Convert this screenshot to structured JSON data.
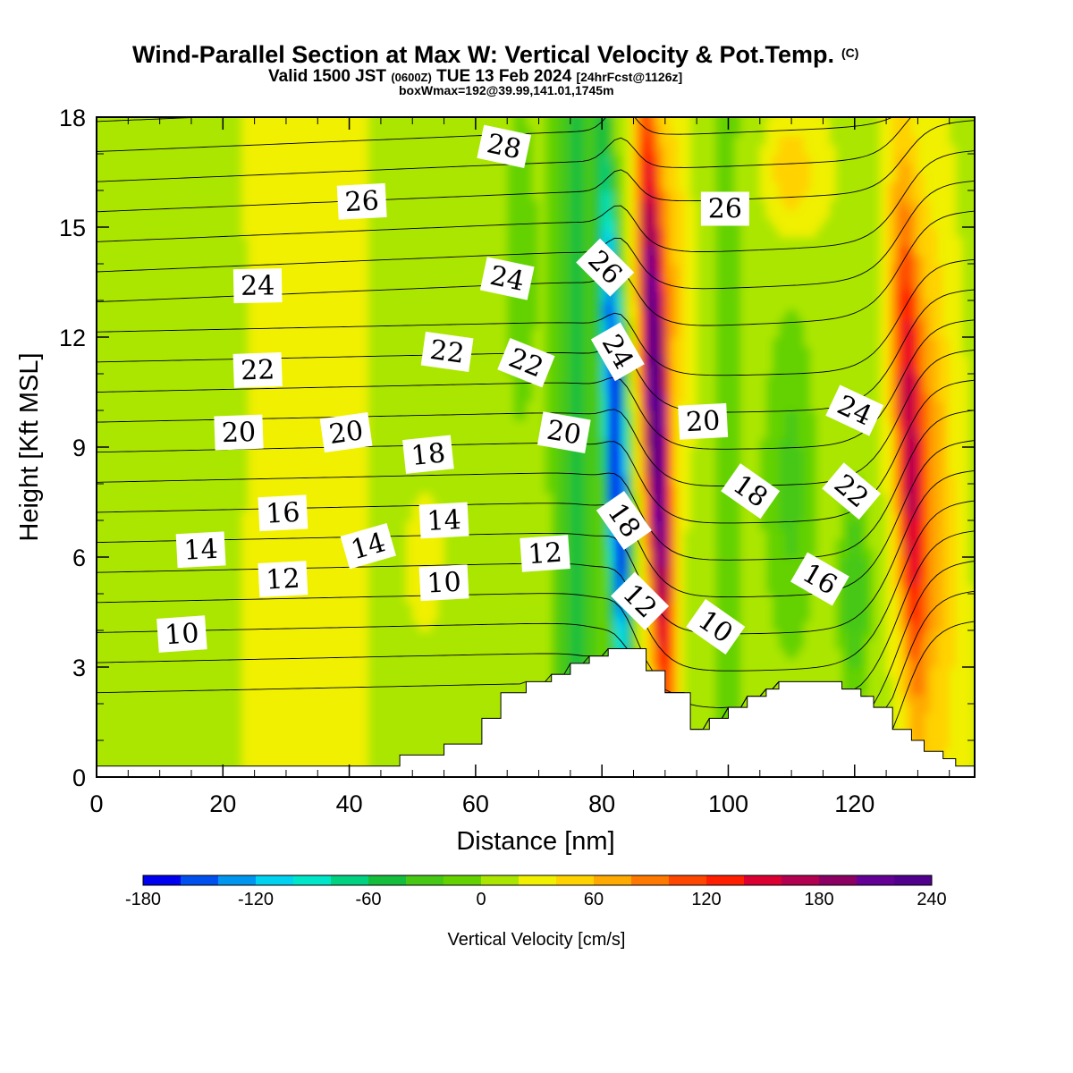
{
  "chart_data": {
    "type": "heatmap",
    "title": "Wind-Parallel Section at Max W: Vertical Velocity & Pot.Temp.",
    "copyright_mark": "(C)",
    "subtitle_main": "Valid 1500 JST",
    "subtitle_utc": "(0600Z)",
    "subtitle_date": "TUE 13 Feb 2024",
    "subtitle_fcst": "[24hrFcst@1126z]",
    "subtitle2": "boxWmax=192@39.99,141.01,1745m",
    "xlabel": "Distance [nm]",
    "ylabel": "Height [Kft MSL]",
    "xlim": [
      0,
      139
    ],
    "ylim": [
      0,
      18
    ],
    "x_ticks": [
      "0",
      "20",
      "40",
      "60",
      "80",
      "100",
      "120"
    ],
    "y_ticks": [
      "0",
      "3",
      "6",
      "9",
      "12",
      "15",
      "18"
    ],
    "colorbar": {
      "label": "Vertical Velocity [cm/s]",
      "range": [
        -180,
        240
      ],
      "step": 20,
      "tick_labels": [
        "-180",
        "-120",
        "-60",
        "0",
        "60",
        "120",
        "180",
        "240"
      ],
      "colors": [
        "#0000f0",
        "#0050f0",
        "#0096f0",
        "#00d2f0",
        "#00e6c8",
        "#00d282",
        "#14be3c",
        "#46c814",
        "#64d200",
        "#aae600",
        "#f0f000",
        "#ffd200",
        "#ffaa00",
        "#ff7800",
        "#ff4600",
        "#ff1e00",
        "#dc0032",
        "#b40050",
        "#8c0064",
        "#640096",
        "#50008c"
      ]
    },
    "contour_field": "Potential Temperature",
    "contour_labels": [
      {
        "text": "10",
        "x": 13.5,
        "y": 3.9,
        "angle": -4
      },
      {
        "text": "12",
        "x": 29.5,
        "y": 5.4,
        "angle": -3
      },
      {
        "text": "14",
        "x": 16.5,
        "y": 6.2,
        "angle": -3
      },
      {
        "text": "16",
        "x": 29.5,
        "y": 7.2,
        "angle": -3
      },
      {
        "text": "20",
        "x": 22.5,
        "y": 9.4,
        "angle": -2
      },
      {
        "text": "22",
        "x": 25.5,
        "y": 11.1,
        "angle": -2
      },
      {
        "text": "24",
        "x": 25.5,
        "y": 13.4,
        "angle": -1
      },
      {
        "text": "26",
        "x": 42,
        "y": 15.7,
        "angle": -3
      },
      {
        "text": "20",
        "x": 39.5,
        "y": 9.4,
        "angle": -8
      },
      {
        "text": "14",
        "x": 43,
        "y": 6.3,
        "angle": -16
      },
      {
        "text": "18",
        "x": 52.5,
        "y": 8.8,
        "angle": -6
      },
      {
        "text": "14",
        "x": 55,
        "y": 7.0,
        "angle": -3
      },
      {
        "text": "10",
        "x": 55,
        "y": 5.3,
        "angle": -3
      },
      {
        "text": "22",
        "x": 55.5,
        "y": 11.6,
        "angle": 8
      },
      {
        "text": "24",
        "x": 65,
        "y": 13.6,
        "angle": 12
      },
      {
        "text": "28",
        "x": 64.5,
        "y": 17.2,
        "angle": 12
      },
      {
        "text": "22",
        "x": 68,
        "y": 11.3,
        "angle": 22
      },
      {
        "text": "20",
        "x": 74,
        "y": 9.4,
        "angle": 10
      },
      {
        "text": "12",
        "x": 71,
        "y": 6.1,
        "angle": -4
      },
      {
        "text": "26",
        "x": 80.5,
        "y": 13.9,
        "angle": 45
      },
      {
        "text": "24",
        "x": 82.5,
        "y": 11.6,
        "angle": 60
      },
      {
        "text": "18",
        "x": 83.5,
        "y": 7.0,
        "angle": 55
      },
      {
        "text": "12",
        "x": 86,
        "y": 4.8,
        "angle": 45
      },
      {
        "text": "26",
        "x": 99.5,
        "y": 15.5,
        "angle": 0
      },
      {
        "text": "20",
        "x": 96,
        "y": 9.7,
        "angle": -3
      },
      {
        "text": "18",
        "x": 103.5,
        "y": 7.8,
        "angle": 35
      },
      {
        "text": "10",
        "x": 98,
        "y": 4.1,
        "angle": 35
      },
      {
        "text": "24",
        "x": 120,
        "y": 10.0,
        "angle": 25
      },
      {
        "text": "22",
        "x": 119.5,
        "y": 7.8,
        "angle": 40
      },
      {
        "text": "16",
        "x": 114.5,
        "y": 5.4,
        "angle": 30
      }
    ]
  }
}
